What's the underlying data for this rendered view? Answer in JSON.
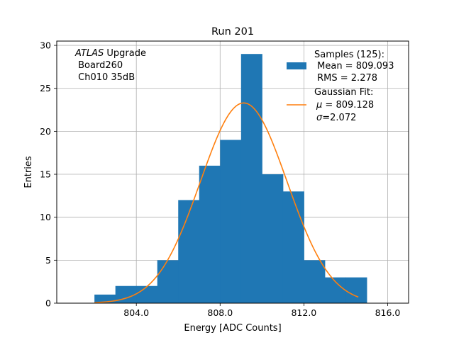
{
  "chart_data": {
    "type": "bar",
    "title": "Run 201",
    "xlabel": "Energy [ADC Counts]",
    "ylabel": "Entries",
    "xlim": [
      800.2,
      817.0
    ],
    "ylim": [
      0,
      30.5
    ],
    "x_ticks": [
      804.0,
      808.0,
      812.0,
      816.0
    ],
    "x_tick_labels": [
      "804.0",
      "808.0",
      "812.0",
      "816.0"
    ],
    "y_ticks": [
      0,
      5,
      10,
      15,
      20,
      25,
      30
    ],
    "y_tick_labels": [
      "0",
      "5",
      "10",
      "15",
      "20",
      "25",
      "30"
    ],
    "grid": true,
    "bin_edges": [
      802,
      803,
      804,
      805,
      806,
      807,
      808,
      809,
      810,
      811,
      812,
      813,
      814,
      815
    ],
    "counts": [
      1,
      2,
      2,
      5,
      12,
      16,
      19,
      29,
      15,
      13,
      5,
      3,
      3
    ],
    "fit": {
      "mu": 809.128,
      "sigma": 2.072,
      "peak": 23.3,
      "x_range": [
        802.0,
        814.6
      ]
    },
    "annotation": {
      "line1_italic": "ATLAS",
      "line1_rest": " Upgrade",
      "line2": " Board260",
      "line3": " Ch010 35dB"
    },
    "legend": {
      "position": "top-right",
      "samples": [
        "Samples (125):",
        " Mean = 809.093",
        " RMS = 2.278"
      ],
      "fit_title": "Gaussian Fit:",
      "fit_mu_symbol": "μ",
      "fit_mu_value": " = 809.128",
      "fit_sigma_symbol": "σ",
      "fit_sigma_value": "=2.072"
    },
    "colors": {
      "bars": "#1f77b4",
      "fit_line": "#ff7f0e",
      "grid": "#b0b0b0",
      "axes": "#000000"
    }
  }
}
